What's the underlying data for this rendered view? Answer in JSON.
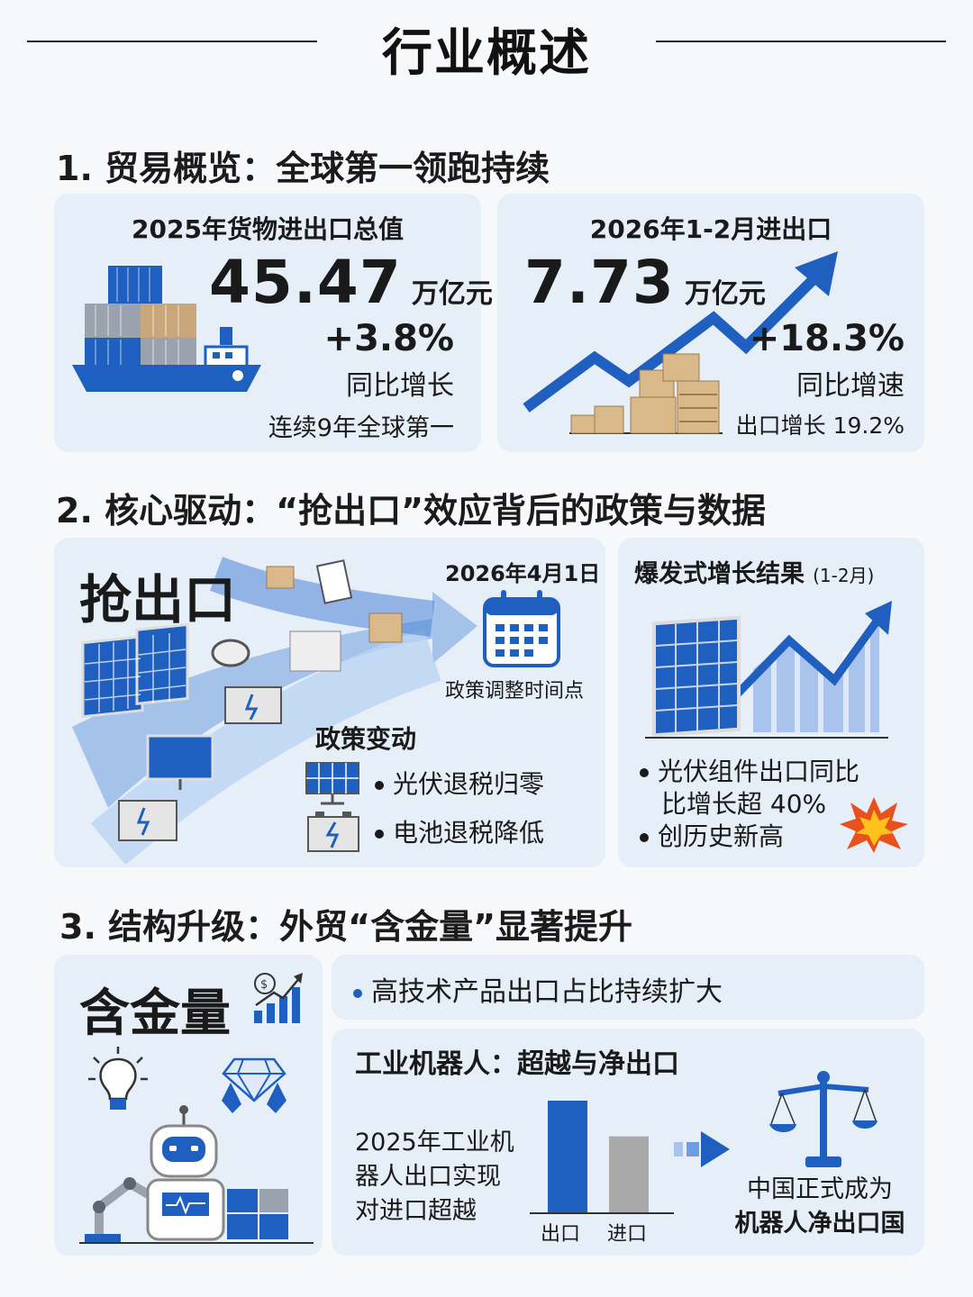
{
  "page": {
    "title": "行业概述"
  },
  "section1": {
    "heading": "1. 贸易概览：全球第一领跑持续",
    "card_left": {
      "title": "2025年货物进出口总值",
      "value": "45.47",
      "unit": "万亿元",
      "growth": "+3.8%",
      "growth_label": "同比增长",
      "note": "连续9年全球第一",
      "icon": "cargo-ship-icon"
    },
    "card_right": {
      "title": "2026年1-2月进出口",
      "value": "7.73",
      "unit": "万亿元",
      "growth": "+18.3%",
      "growth_label": "同比增速",
      "note": "出口增长 19.2%",
      "icon": "rising-arrow-boxes-icon"
    }
  },
  "section2": {
    "heading": "2. 核心驱动：“抢出口”效应背后的政策与数据",
    "card_left": {
      "big_label": "抢出口",
      "date": "2026年4月1日",
      "date_caption": "政策调整时间点",
      "policy_title": "政策变动",
      "policies": [
        {
          "icon": "solar-panel-icon",
          "text": "光伏退税归零"
        },
        {
          "icon": "battery-icon",
          "text": "电池退税降低"
        }
      ]
    },
    "card_right": {
      "title": "爆发式增长结果",
      "title_suffix": "(1-2月)",
      "bullets": [
        "光伏组件出口同比",
        "比增长超 40%",
        "创历史新高"
      ],
      "icon": "explosion-icon"
    }
  },
  "section3": {
    "heading": "3. 结构升级：外贸“含金量”显著提升",
    "left": {
      "big_label": "含金量"
    },
    "banner": "高技术产品出口占比持续扩大",
    "robot_card": {
      "title": "工业机器人：超越与净出口",
      "desc_lines": [
        "2025年工业机",
        "器人出口实现",
        "对进口超越"
      ],
      "bars": [
        {
          "label": "出口",
          "value": 1.0,
          "color": "#1f5fbf"
        },
        {
          "label": "进口",
          "value": 0.68,
          "color": "#a9a9a9"
        }
      ],
      "result_lines": [
        "中国正式成为",
        "机器人净出口国"
      ]
    }
  },
  "colors": {
    "accent": "#1f5fbf",
    "card": "#e6eef8",
    "box": "#d9b98a"
  }
}
